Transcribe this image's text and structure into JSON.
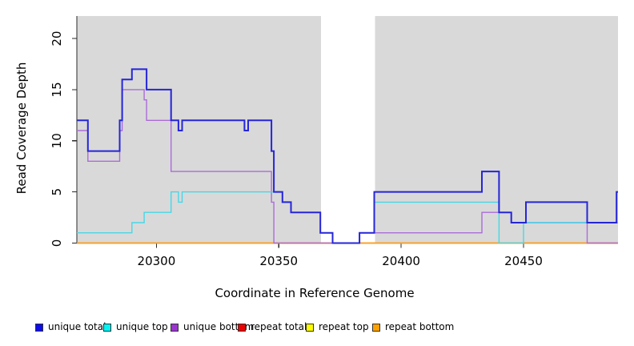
{
  "chart_data": {
    "type": "line",
    "subtype": "step-coverage-plot",
    "title": "",
    "xlabel": "Coordinate in Reference Genome",
    "ylabel": "Read Coverage Depth",
    "xlim": [
      20267.5,
      20488.6
    ],
    "ylim": [
      0,
      22.2
    ],
    "grid": false,
    "panel_color": "#d9d9d9",
    "gap_regions": [
      [
        20367.3,
        20389.3
      ]
    ],
    "panels": [
      [
        20267.5,
        20367.3
      ],
      [
        20389.3,
        20488.6
      ]
    ],
    "x_ticks": [
      {
        "value": 20300,
        "label": "20300"
      },
      {
        "value": 20350,
        "label": "20350"
      },
      {
        "value": 20400,
        "label": "20400"
      },
      {
        "value": 20450,
        "label": "20450"
      }
    ],
    "y_ticks": [
      {
        "value": 0,
        "label": "0"
      },
      {
        "value": 5,
        "label": "5"
      },
      {
        "value": 10,
        "label": "10"
      },
      {
        "value": 15,
        "label": "15"
      },
      {
        "value": 20,
        "label": "20"
      }
    ],
    "series": [
      {
        "name": "repeat total",
        "color": "#bb2222",
        "width": 1.3,
        "points": [
          [
            20267.5,
            0
          ],
          [
            20488.6,
            0
          ]
        ]
      },
      {
        "name": "repeat top",
        "color": "#f2e60d",
        "width": 1.3,
        "points": [
          [
            20267.5,
            0
          ],
          [
            20488.6,
            0
          ]
        ]
      },
      {
        "name": "repeat bottom",
        "color": "#ff9d1b",
        "width": 1.7,
        "points": [
          [
            20267.5,
            0
          ],
          [
            20488.6,
            0
          ]
        ]
      },
      {
        "name": "unique bottom",
        "color": "#ab6cd9",
        "width": 1.4,
        "points": [
          [
            20267.5,
            11
          ],
          [
            20272,
            8
          ],
          [
            20285,
            11
          ],
          [
            20286,
            15
          ],
          [
            20295,
            14
          ],
          [
            20296,
            12
          ],
          [
            20306,
            7
          ],
          [
            20347,
            4
          ],
          [
            20348,
            0
          ],
          [
            20383,
            1
          ],
          [
            20433,
            3
          ],
          [
            20445,
            2
          ],
          [
            20476,
            0
          ],
          [
            20488.6,
            0
          ]
        ]
      },
      {
        "name": "unique top",
        "color": "#46d7e6",
        "width": 1.4,
        "points": [
          [
            20267.5,
            1
          ],
          [
            20290,
            2
          ],
          [
            20295,
            3
          ],
          [
            20306,
            5
          ],
          [
            20309,
            4
          ],
          [
            20310.5,
            5
          ],
          [
            20351.5,
            4
          ],
          [
            20355,
            3
          ],
          [
            20367,
            1
          ],
          [
            20372,
            0
          ],
          [
            20383,
            1
          ],
          [
            20389,
            4
          ],
          [
            20440,
            0
          ],
          [
            20450,
            2
          ],
          [
            20488.6,
            2
          ]
        ]
      },
      {
        "name": "unique total",
        "color": "#2525d9",
        "width": 2,
        "points": [
          [
            20267.5,
            12
          ],
          [
            20272,
            9
          ],
          [
            20285,
            12
          ],
          [
            20286,
            16
          ],
          [
            20290,
            17
          ],
          [
            20296,
            15
          ],
          [
            20306,
            12
          ],
          [
            20309,
            11
          ],
          [
            20310.5,
            12
          ],
          [
            20336,
            11
          ],
          [
            20337.5,
            12
          ],
          [
            20347,
            9
          ],
          [
            20348,
            5
          ],
          [
            20351.5,
            4
          ],
          [
            20355,
            3
          ],
          [
            20367,
            1
          ],
          [
            20372,
            0
          ],
          [
            20383,
            1
          ],
          [
            20389,
            5
          ],
          [
            20433,
            7
          ],
          [
            20440,
            3
          ],
          [
            20445,
            2
          ],
          [
            20451,
            4
          ],
          [
            20476,
            2
          ],
          [
            20488,
            5
          ],
          [
            20488.6,
            5
          ]
        ]
      }
    ]
  },
  "legend": {
    "items": [
      {
        "label": "unique total",
        "color": "#0d0dee"
      },
      {
        "label": "unique top",
        "color": "#00f5f5"
      },
      {
        "label": "unique bottom",
        "color": "#9a35cf"
      },
      {
        "label": "repeat total",
        "color": "#ee0000"
      },
      {
        "label": "repeat top",
        "color": "#fdfd00"
      },
      {
        "label": "repeat bottom",
        "color": "#ffa200"
      }
    ]
  }
}
